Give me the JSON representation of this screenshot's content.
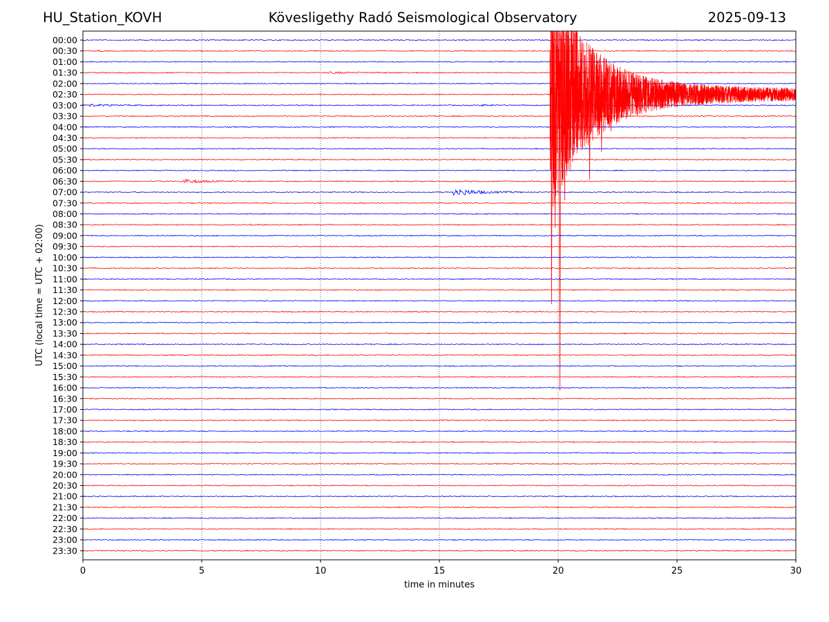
{
  "header": {
    "station": "HU_Station_KOVH",
    "title": "Kövesligethy Radó Seismological Observatory",
    "date": "2025-09-13"
  },
  "chart_data": {
    "type": "line",
    "title": "Kövesligethy Radó Seismological Observatory",
    "xlabel": "time in minutes",
    "ylabel": "UTC (local time = UTC + 02:00)",
    "xlim": [
      0,
      30
    ],
    "x_ticks": [
      "0",
      "5",
      "10",
      "15",
      "20",
      "25",
      "30"
    ],
    "x_tick_values": [
      0,
      5,
      10,
      15,
      20,
      25,
      30
    ],
    "grid": "vertical dotted lines at x ticks",
    "trace_colors": [
      "#0000ff",
      "#ff0000"
    ],
    "rows": [
      "00:00",
      "00:30",
      "01:00",
      "01:30",
      "02:00",
      "02:30",
      "03:00",
      "03:30",
      "04:00",
      "04:30",
      "05:00",
      "05:30",
      "06:00",
      "06:30",
      "07:00",
      "07:30",
      "08:00",
      "08:30",
      "09:00",
      "09:30",
      "10:00",
      "10:30",
      "11:00",
      "11:30",
      "12:00",
      "12:30",
      "13:00",
      "13:30",
      "14:00",
      "14:30",
      "15:00",
      "15:30",
      "16:00",
      "16:30",
      "17:00",
      "17:30",
      "18:00",
      "18:30",
      "19:00",
      "19:30",
      "20:00",
      "20:30",
      "21:00",
      "21:30",
      "22:00",
      "22:30",
      "23:00",
      "23:30"
    ],
    "events": [
      {
        "row": "00:30",
        "start_min": 0.6,
        "end_min": 1.6,
        "amp": 0.15
      },
      {
        "row": "01:30",
        "start_min": 10.4,
        "end_min": 14.5,
        "amp": 0.2
      },
      {
        "row": "03:00",
        "start_min": 0.0,
        "end_min": 2.5,
        "amp": 0.45
      },
      {
        "row": "03:00",
        "start_min": 16.8,
        "end_min": 18.2,
        "amp": 0.25
      },
      {
        "row": "06:30",
        "start_min": 4.15,
        "end_min": 6.5,
        "amp": 0.7
      },
      {
        "row": "07:00",
        "start_min": 15.6,
        "end_min": 18.5,
        "amp": 1.2
      },
      {
        "row": "08:30",
        "start_min": 7.0,
        "end_min": 8.5,
        "amp": 0.15
      },
      {
        "row": "12:30",
        "start_min": 13.8,
        "end_min": 14.4,
        "amp": 0.15
      },
      {
        "row": "02:30",
        "start_min": 19.65,
        "end_min": 30.0,
        "amp": 8.0,
        "major": true
      }
    ]
  }
}
